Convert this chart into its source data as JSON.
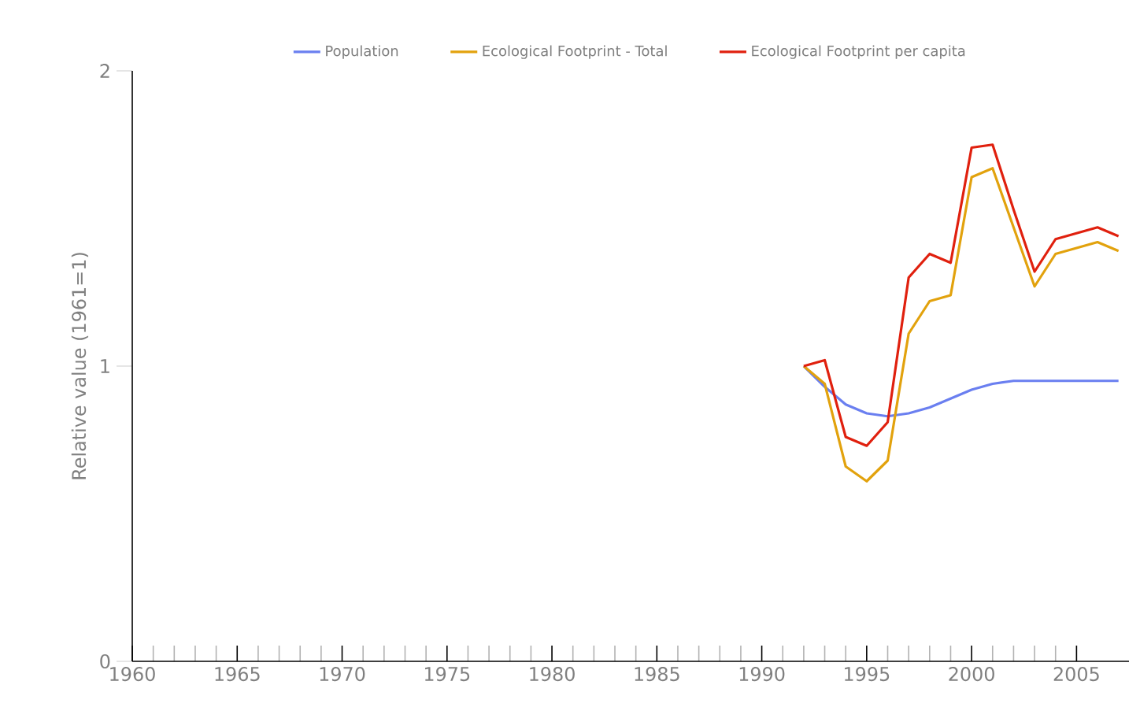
{
  "chart_data": {
    "type": "line",
    "ylabel": "Relative value (1961=1)",
    "x": [
      1992,
      1993,
      1994,
      1995,
      1996,
      1997,
      1998,
      1999,
      2000,
      2001,
      2002,
      2003,
      2004,
      2005,
      2006,
      2007
    ],
    "series": [
      {
        "name": "Population",
        "color": "#6a7ff0",
        "values": [
          1.0,
          0.93,
          0.87,
          0.84,
          0.83,
          0.84,
          0.86,
          0.89,
          0.92,
          0.94,
          0.95,
          0.95,
          0.95,
          0.95,
          0.95,
          0.95
        ]
      },
      {
        "name": "Ecological Footprint - Total",
        "color": "#e2a20d",
        "values": [
          1.0,
          0.94,
          0.66,
          0.61,
          0.68,
          1.11,
          1.22,
          1.24,
          1.64,
          1.67,
          1.47,
          1.27,
          1.38,
          1.4,
          1.42,
          1.39
        ]
      },
      {
        "name": "Ecological Footprint per capita",
        "color": "#e0200e",
        "values": [
          1.0,
          1.02,
          0.76,
          0.73,
          0.81,
          1.3,
          1.38,
          1.35,
          1.74,
          1.75,
          1.53,
          1.32,
          1.43,
          1.45,
          1.47,
          1.44
        ]
      }
    ],
    "xlim": [
      1960,
      2007.5
    ],
    "xticks": [
      1960,
      1965,
      1970,
      1975,
      1980,
      1985,
      1990,
      1995,
      2000,
      2005
    ],
    "ylim": [
      0,
      2
    ],
    "yticks": [
      0,
      1,
      2
    ],
    "grid": false,
    "legend": "top",
    "marker": "none",
    "line_style": "solid"
  }
}
